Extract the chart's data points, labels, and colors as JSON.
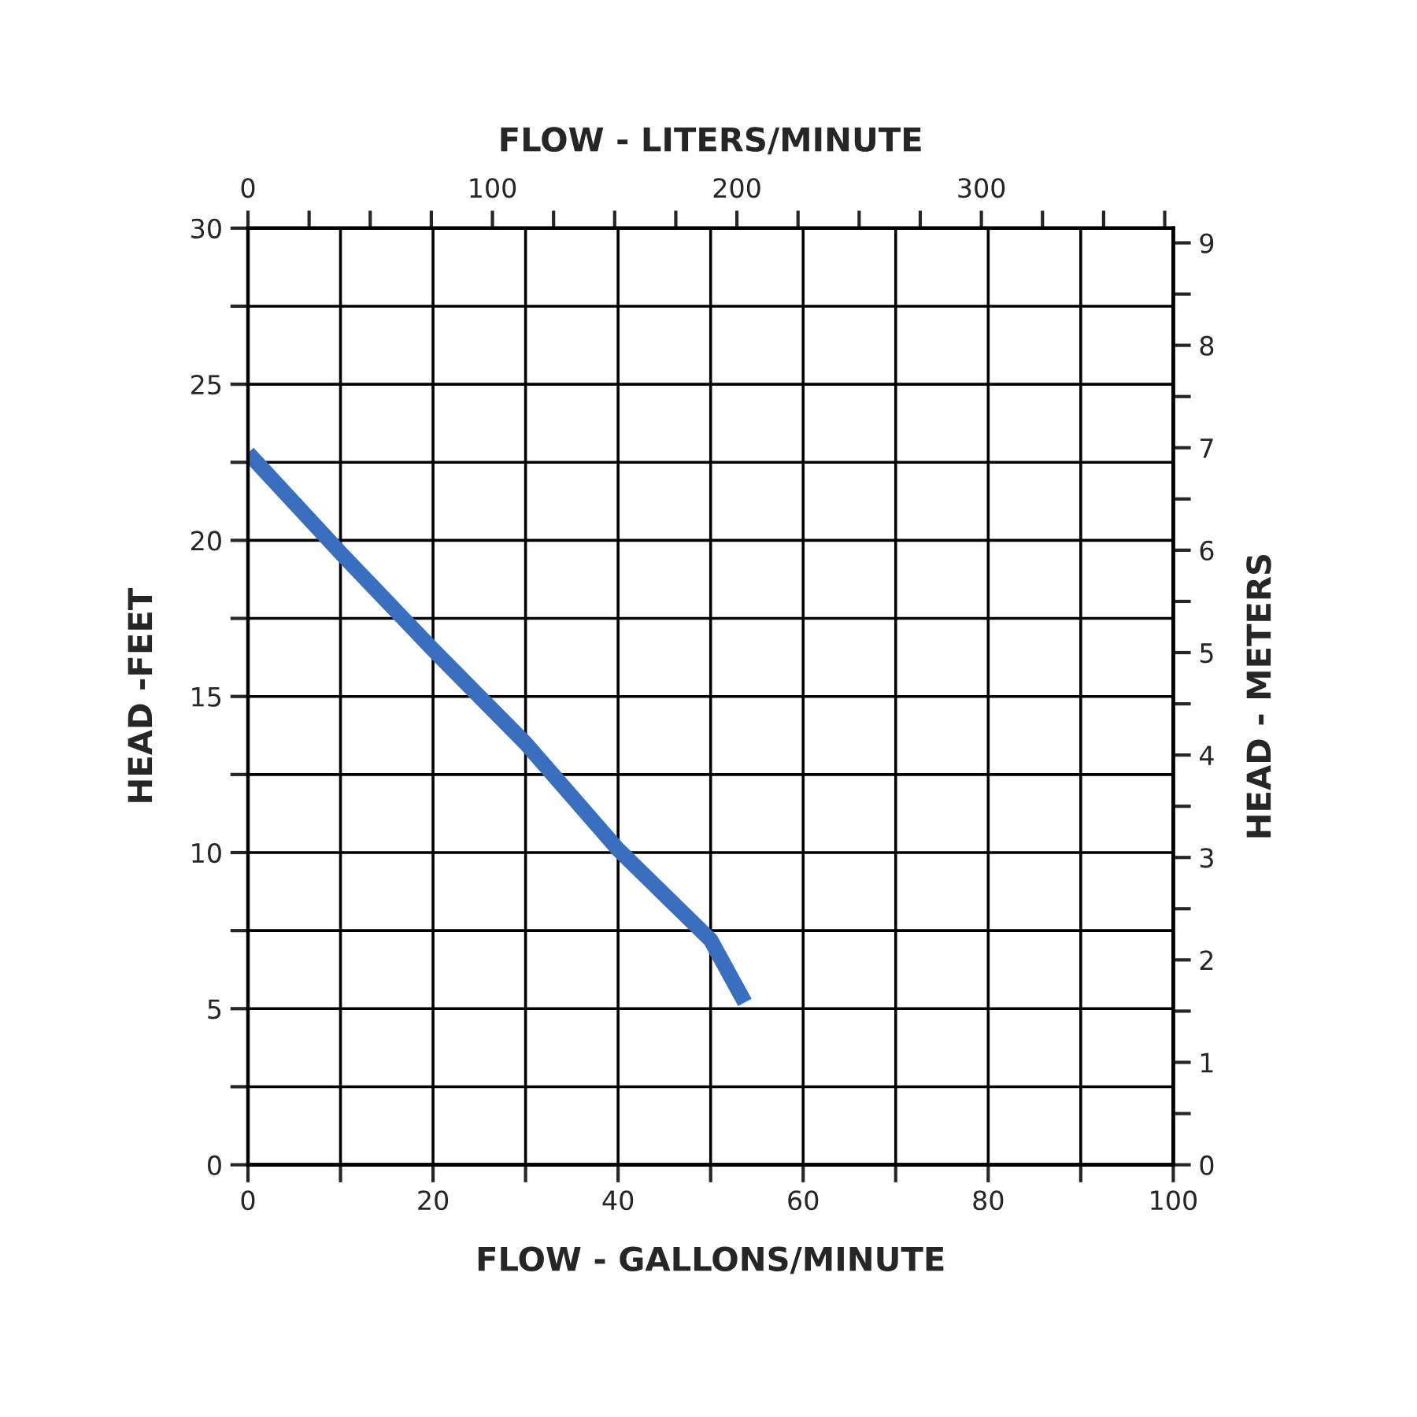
{
  "chart_data": {
    "type": "line",
    "xlabel": "FLOW - GALLONS/MINUTE",
    "x2label": "FLOW - LITERS/MINUTE",
    "ylabel": "HEAD -FEET",
    "y2label": "HEAD - METERS",
    "x": [
      0,
      10,
      20,
      30,
      40,
      50,
      53.7
    ],
    "series": [
      {
        "color": "#3a6fc0",
        "values": [
          22.8,
          19.6,
          16.5,
          13.5,
          10.1,
          7.2,
          5.2
        ]
      }
    ],
    "xlim": [
      0,
      100
    ],
    "xticks": [
      0,
      {
        "value": 10,
        "label": null
      },
      20,
      {
        "value": 30,
        "label": null
      },
      40,
      {
        "value": 50,
        "label": null
      },
      60,
      {
        "value": 70,
        "label": null
      },
      80,
      {
        "value": 90,
        "label": null
      },
      100
    ],
    "ylim": [
      0,
      30
    ],
    "yticks": [
      0,
      {
        "value": 2.5,
        "label": null
      },
      5,
      {
        "value": 7.5,
        "label": null
      },
      10,
      {
        "value": 12.5,
        "label": null
      },
      15,
      {
        "value": 17.5,
        "label": null
      },
      20,
      {
        "value": 22.5,
        "label": null
      },
      25,
      {
        "value": 27.5,
        "label": null
      },
      30
    ],
    "x2lim": [
      0,
      378.5
    ],
    "x2ticks": [
      0,
      {
        "value": 25,
        "label": null
      },
      {
        "value": 50,
        "label": null
      },
      {
        "value": 75,
        "label": null
      },
      100,
      {
        "value": 125,
        "label": null
      },
      {
        "value": 150,
        "label": null
      },
      {
        "value": 175,
        "label": null
      },
      200,
      {
        "value": 225,
        "label": null
      },
      {
        "value": 250,
        "label": null
      },
      {
        "value": 275,
        "label": null
      },
      300,
      {
        "value": 325,
        "label": null
      },
      {
        "value": 350,
        "label": null
      },
      {
        "value": 375,
        "label": null
      }
    ],
    "y2lim": [
      0,
      9.144
    ],
    "y2ticks": [
      0,
      {
        "value": 0.5,
        "label": null
      },
      1,
      {
        "value": 1.5,
        "label": null
      },
      2,
      {
        "value": 2.5,
        "label": null
      },
      3,
      {
        "value": 3.5,
        "label": null
      },
      4,
      {
        "value": 4.5,
        "label": null
      },
      5,
      {
        "value": 5.5,
        "label": null
      },
      6,
      {
        "value": 6.5,
        "label": null
      },
      7,
      {
        "value": 7.5,
        "label": null
      },
      8,
      {
        "value": 8.5,
        "label": null
      },
      9
    ],
    "grid": true,
    "line_style": "solid",
    "marker": "none",
    "legend": false
  }
}
